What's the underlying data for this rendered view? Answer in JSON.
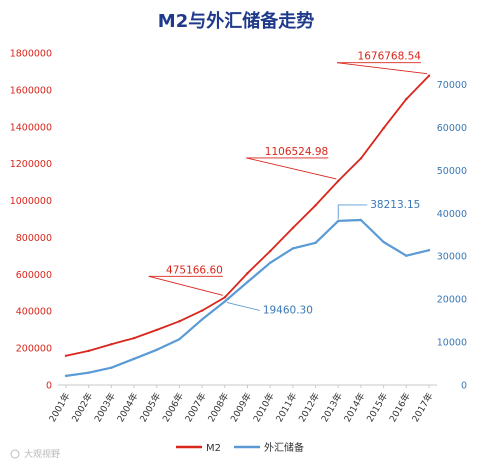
{
  "chart_data": {
    "type": "line",
    "title": "M2与外汇储备走势",
    "categories": [
      "2001年",
      "2002年",
      "2003年",
      "2004年",
      "2005年",
      "2006年",
      "2007年",
      "2008年",
      "2009年",
      "2010年",
      "2011年",
      "2012年",
      "2013年",
      "2014年",
      "2015年",
      "2016年",
      "2017年"
    ],
    "series": [
      {
        "name": "M2",
        "axis": "left",
        "color": "#d9261c",
        "values": [
          158302,
          185007,
          221223,
          254107,
          298756,
          345604,
          403442,
          475166.6,
          606225,
          725852,
          851591,
          974159,
          1106524.98,
          1228375,
          1392278,
          1550067,
          1676768.54
        ]
      },
      {
        "name": "外汇储备",
        "axis": "right",
        "color": "#5b9bd5",
        "values": [
          2122,
          2864,
          4033,
          6099,
          8189,
          10663,
          15282,
          19460.3,
          23992,
          28473,
          31811,
          33116,
          38213.15,
          38430,
          33304,
          30105,
          31399
        ]
      }
    ],
    "y_left": {
      "min": 0,
      "max": 1800000,
      "ticks": [
        "0",
        "200000",
        "400000",
        "600000",
        "800000",
        "1000000",
        "1200000",
        "1400000",
        "1600000",
        "1800000"
      ],
      "color": "#d9261c"
    },
    "y_right": {
      "min": 0,
      "max": 75000,
      "ticks": [
        "0",
        "10000",
        "20000",
        "30000",
        "40000",
        "50000",
        "60000",
        "70000"
      ],
      "color": "#3a78b5"
    },
    "annotations": [
      {
        "series": 0,
        "index": 7,
        "label": "475166.60"
      },
      {
        "series": 0,
        "index": 12,
        "label": "1106524.98"
      },
      {
        "series": 0,
        "index": 16,
        "label": "1676768.54"
      },
      {
        "series": 1,
        "index": 7,
        "label": "19460.30"
      },
      {
        "series": 1,
        "index": 12,
        "label": "38213.15"
      }
    ],
    "grid": false,
    "legend_position": "bottom"
  },
  "watermark": "大观视野"
}
